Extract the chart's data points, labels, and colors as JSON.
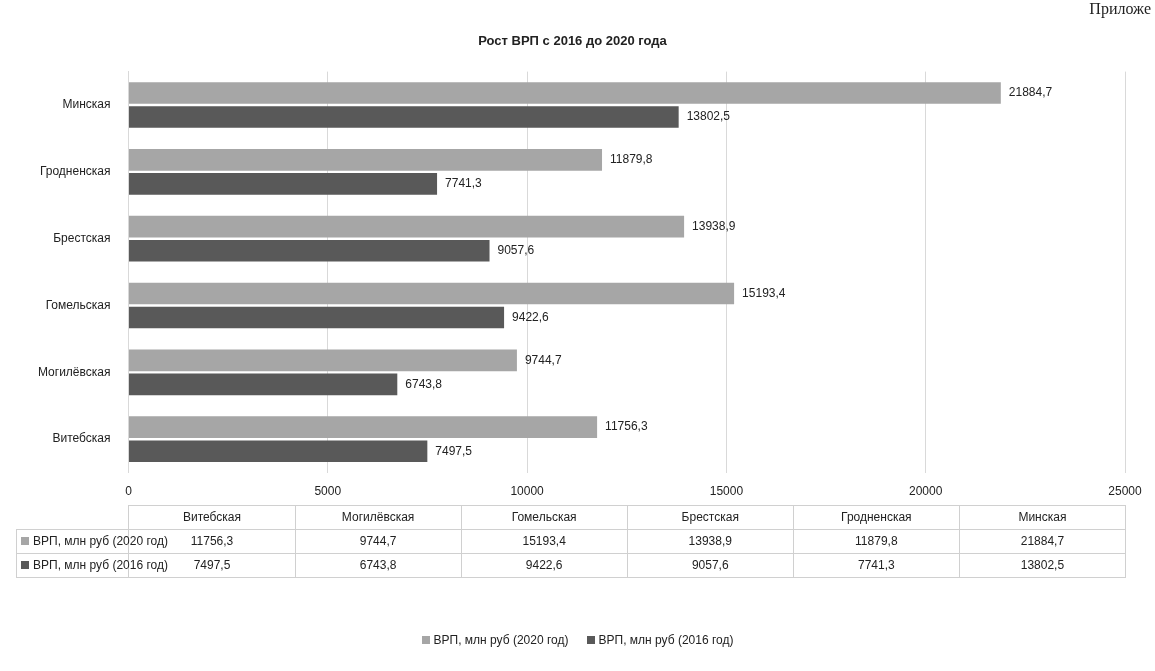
{
  "chart_data": {
    "type": "bar",
    "orientation": "horizontal",
    "title": "Рост ВРП с 2016 до 2020 года",
    "annotations": [
      "Приложе"
    ],
    "categories": [
      "Минская",
      "Гродненская",
      "Брестская",
      "Гомельская",
      "Могилёвская",
      "Витебская"
    ],
    "series": [
      {
        "name": "ВРП, млн руб (2020 год)",
        "color": "#a6a6a6",
        "values": [
          21884.7,
          11879.8,
          13938.9,
          15193.4,
          9744.7,
          11756.3
        ],
        "value_labels": [
          "21884,7",
          "11879,8",
          "13938,9",
          "15193,4",
          "9744,7",
          "11756,3"
        ]
      },
      {
        "name": "ВРП, млн руб (2016 год)",
        "color": "#595959",
        "values": [
          13802.5,
          7741.3,
          9057.6,
          9422.6,
          6743.8,
          7497.5
        ],
        "value_labels": [
          "13802,5",
          "7741,3",
          "9057,6",
          "9422,6",
          "6743,8",
          "7497,5"
        ]
      }
    ],
    "xlim": [
      0,
      25000
    ],
    "xticks": [
      0,
      5000,
      10000,
      15000,
      20000,
      25000
    ],
    "grid": "x",
    "legend": "bottom"
  }
}
